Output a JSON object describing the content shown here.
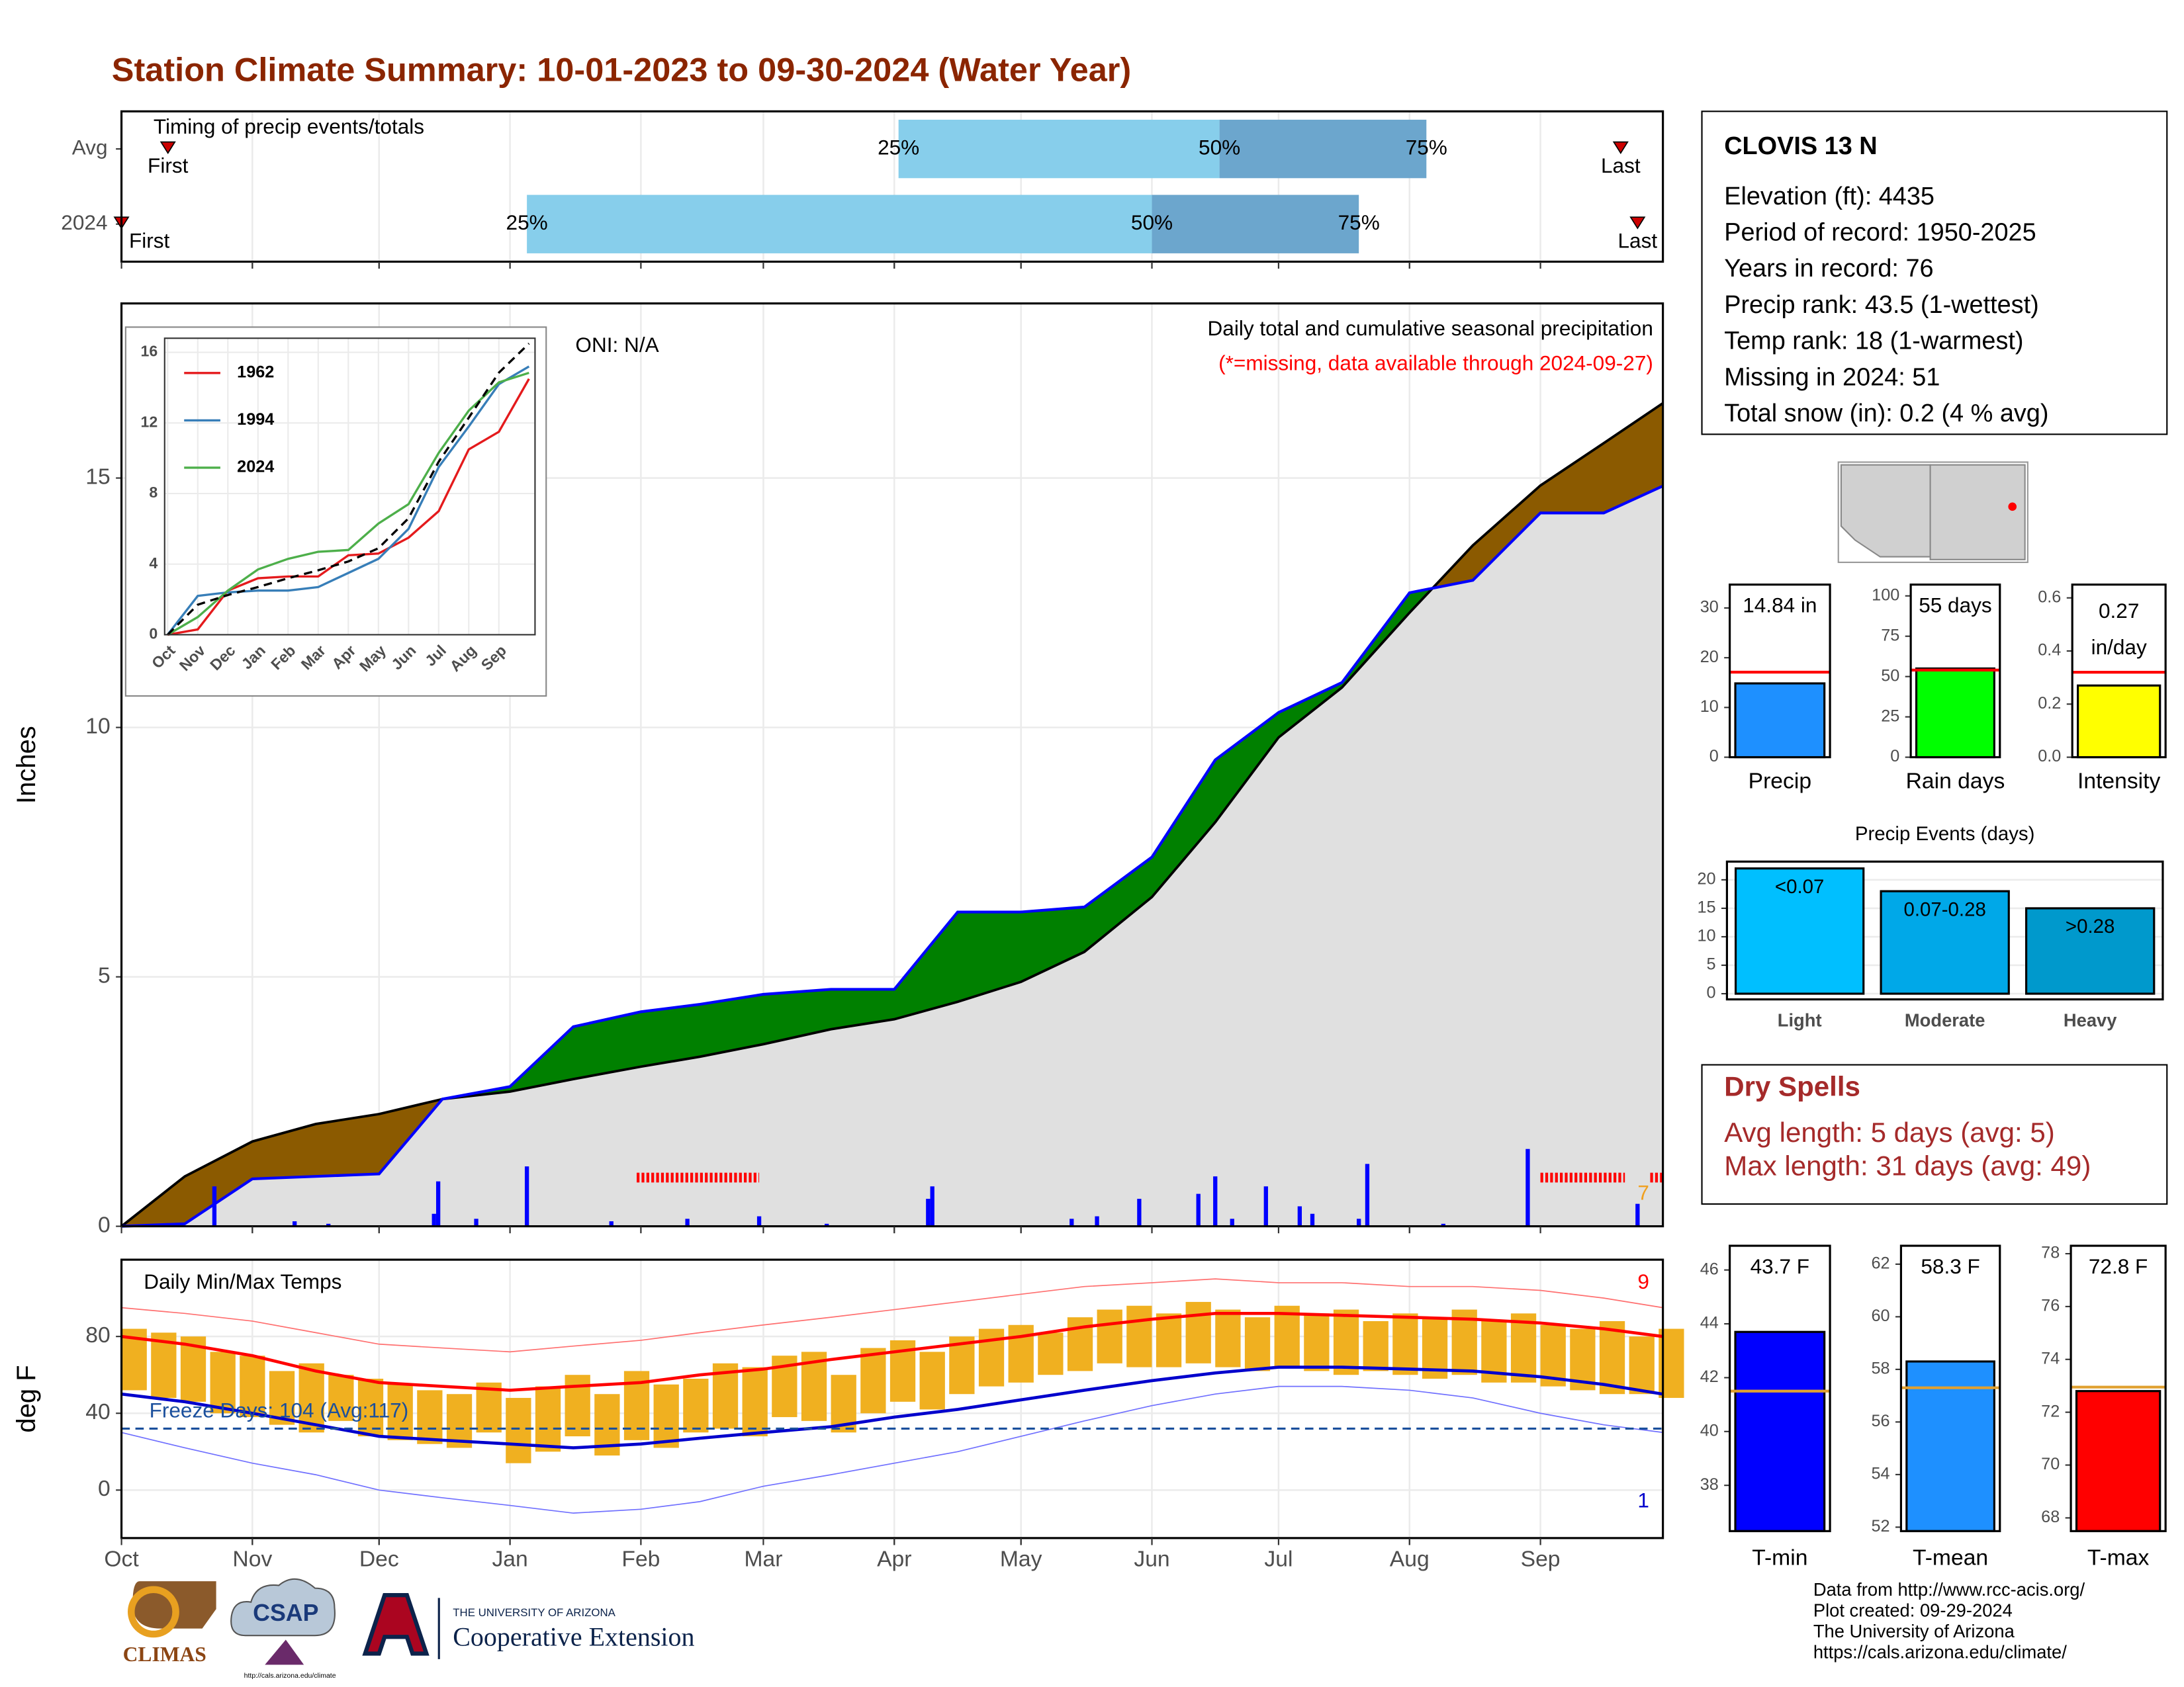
{
  "title": "Station Climate Summary: 10-01-2023 to 09-30-2024 (Water Year)",
  "chart_data": [
    {
      "type": "timing",
      "title": "Timing of precip events/totals",
      "categories": [
        "Avg",
        "2024"
      ],
      "xlim": [
        0,
        365
      ],
      "series": [
        {
          "name": "First",
          "values": [
            11,
            0
          ]
        },
        {
          "name": "25%",
          "values": [
            184,
            96
          ]
        },
        {
          "name": "50%",
          "values": [
            260,
            244
          ]
        },
        {
          "name": "75%",
          "values": [
            309,
            293
          ]
        },
        {
          "name": "Last",
          "values": [
            355,
            359
          ]
        }
      ],
      "colors": [
        "#87ceeb",
        "#6ca6cd"
      ],
      "marker_color": "#cc0000"
    },
    {
      "type": "area",
      "subtitle": "Daily total and cumulative seasonal precipitation",
      "note": "(*=missing, data available through 2024-09-27)",
      "annotation": "ONI: N/A",
      "ylabel": "Inches",
      "xlim": [
        0,
        365
      ],
      "ylim": [
        0,
        18.5
      ],
      "yticks": [
        0,
        5,
        10,
        15
      ],
      "grid": true,
      "x": [
        0,
        15,
        31,
        46,
        61,
        76,
        92,
        107,
        123,
        137,
        152,
        168,
        183,
        198,
        213,
        228,
        244,
        259,
        274,
        289,
        305,
        320,
        336,
        351,
        365
      ],
      "series": [
        {
          "color": "#000000",
          "values": [
            0,
            1.0,
            1.7,
            2.05,
            2.25,
            2.55,
            2.7,
            2.95,
            3.2,
            3.4,
            3.65,
            3.95,
            4.15,
            4.5,
            4.9,
            5.5,
            6.6,
            8.1,
            9.8,
            10.8,
            12.3,
            13.65,
            14.85,
            15.7,
            16.5
          ]
        },
        {
          "color": "#0000ff",
          "values": [
            0,
            0.05,
            0.95,
            1.0,
            1.05,
            2.55,
            2.8,
            4.0,
            4.3,
            4.45,
            4.65,
            4.75,
            4.75,
            6.3,
            6.3,
            6.4,
            7.4,
            9.35,
            10.3,
            10.9,
            12.7,
            12.95,
            14.3,
            14.3,
            14.84
          ]
        }
      ],
      "above_color": "#008000",
      "below_color": "#8b5a00",
      "base_color": "#e0e0e0",
      "daily": {
        "color": "#0000ff",
        "x": [
          22,
          41,
          49,
          74,
          75,
          84,
          96,
          116,
          134,
          151,
          167,
          191,
          192,
          225,
          231,
          241,
          255,
          259,
          263,
          271,
          279,
          282,
          293,
          295,
          313,
          333,
          359
        ],
        "values": [
          0.8,
          0.1,
          0.05,
          0.25,
          0.9,
          0.15,
          1.2,
          0.1,
          0.15,
          0.2,
          0.05,
          0.55,
          0.8,
          0.15,
          0.2,
          0.55,
          0.65,
          1.0,
          0.15,
          0.8,
          0.4,
          0.25,
          0.15,
          1.25,
          0.05,
          1.55,
          0.45
        ]
      },
      "missing": [
        [
          122,
          151
        ],
        [
          336,
          356
        ],
        [
          362,
          365
        ]
      ],
      "missing_color": "#ff0000",
      "missing_count": 7,
      "missing_count_color": "#f0a020"
    },
    {
      "type": "line",
      "xlim": [
        -0.1,
        12.2
      ],
      "ylim": [
        0,
        16.8
      ],
      "yticks": [
        0,
        4,
        8,
        12,
        16
      ],
      "xticks": [
        {
          "value": 0,
          "label": "Oct"
        },
        {
          "value": 1,
          "label": "Nov"
        },
        {
          "value": 2,
          "label": "Dec"
        },
        {
          "value": 3,
          "label": "Jan"
        },
        {
          "value": 4,
          "label": "Feb"
        },
        {
          "value": 5,
          "label": "Mar"
        },
        {
          "value": 6,
          "label": "Apr"
        },
        {
          "value": 7,
          "label": "May"
        },
        {
          "value": 8,
          "label": "Jun"
        },
        {
          "value": 9,
          "label": "Jul"
        },
        {
          "value": 10,
          "label": "Aug"
        },
        {
          "value": 11,
          "label": "Sep"
        }
      ],
      "x": [
        0,
        1,
        2,
        3,
        4,
        5,
        6,
        7,
        8,
        9,
        10,
        11,
        12
      ],
      "series": [
        {
          "name": "1962",
          "color": "#e41a1c",
          "values": [
            0,
            0.3,
            2.5,
            3.2,
            3.3,
            3.3,
            4.5,
            4.6,
            5.5,
            7.0,
            10.5,
            11.5,
            14.5
          ]
        },
        {
          "name": "1994",
          "color": "#377eb8",
          "values": [
            0,
            2.2,
            2.4,
            2.5,
            2.5,
            2.7,
            3.5,
            4.3,
            6.0,
            9.5,
            11.8,
            14.2,
            15.2
          ]
        },
        {
          "name": "2024",
          "color": "#4daf4a",
          "values": [
            0,
            1.0,
            2.5,
            3.7,
            4.3,
            4.7,
            4.8,
            6.3,
            7.4,
            10.3,
            12.7,
            14.3,
            14.84
          ]
        },
        {
          "color": "#000000",
          "dash": true,
          "values": [
            0,
            1.7,
            2.25,
            2.7,
            3.2,
            3.65,
            4.15,
            4.9,
            6.6,
            9.8,
            12.3,
            14.85,
            16.5
          ]
        }
      ]
    },
    {
      "type": "range",
      "title": "Daily Min/Max Temps",
      "ylabel": "deg F",
      "xlim": [
        0,
        365
      ],
      "ylim": [
        -25,
        120
      ],
      "yticks": [
        0,
        40,
        80
      ],
      "xticks": [
        {
          "value": 0,
          "label": "Oct"
        },
        {
          "value": 31,
          "label": "Nov"
        },
        {
          "value": 61,
          "label": "Dec"
        },
        {
          "value": 92,
          "label": "Jan"
        },
        {
          "value": 123,
          "label": "Feb"
        },
        {
          "value": 152,
          "label": "Mar"
        },
        {
          "value": 183,
          "label": "Apr"
        },
        {
          "value": 213,
          "label": "May"
        },
        {
          "value": 244,
          "label": "Jun"
        },
        {
          "value": 274,
          "label": "Jul"
        },
        {
          "value": 305,
          "label": "Aug"
        },
        {
          "value": 336,
          "label": "Sep"
        }
      ],
      "daily": {
        "color": "#f0b020",
        "x": [
          0,
          7,
          14,
          21,
          28,
          35,
          42,
          49,
          56,
          63,
          70,
          77,
          84,
          91,
          98,
          105,
          112,
          119,
          126,
          133,
          140,
          147,
          154,
          161,
          168,
          175,
          182,
          189,
          196,
          203,
          210,
          217,
          224,
          231,
          238,
          245,
          252,
          259,
          266,
          273,
          280,
          287,
          294,
          301,
          308,
          315,
          322,
          329,
          336,
          343,
          350,
          357,
          364
        ],
        "high": [
          84,
          82,
          80,
          72,
          70,
          62,
          66,
          60,
          58,
          55,
          52,
          50,
          56,
          48,
          54,
          60,
          50,
          62,
          55,
          58,
          66,
          64,
          70,
          72,
          60,
          74,
          78,
          72,
          80,
          84,
          86,
          82,
          90,
          94,
          96,
          92,
          98,
          94,
          90,
          96,
          92,
          94,
          88,
          92,
          90,
          94,
          88,
          92,
          86,
          84,
          88,
          80,
          84
        ],
        "low": [
          52,
          48,
          46,
          40,
          38,
          34,
          30,
          36,
          28,
          26,
          24,
          22,
          30,
          14,
          20,
          28,
          18,
          26,
          22,
          30,
          32,
          28,
          38,
          36,
          30,
          40,
          46,
          42,
          50,
          54,
          56,
          60,
          62,
          66,
          64,
          64,
          66,
          64,
          62,
          64,
          62,
          60,
          62,
          60,
          58,
          60,
          56,
          56,
          54,
          52,
          50,
          50,
          48
        ]
      },
      "x": [
        0,
        15,
        31,
        46,
        61,
        76,
        92,
        107,
        123,
        137,
        152,
        168,
        183,
        198,
        213,
        228,
        244,
        259,
        274,
        289,
        305,
        320,
        336,
        351,
        365
      ],
      "series": [
        {
          "color": "#ff0000",
          "values": [
            80,
            76,
            70,
            62,
            56,
            54,
            52,
            54,
            56,
            60,
            63,
            68,
            72,
            76,
            80,
            85,
            89,
            92,
            92,
            91,
            90,
            89,
            87,
            84,
            80
          ]
        },
        {
          "color": "#0000cc",
          "values": [
            50,
            46,
            40,
            34,
            28,
            26,
            24,
            22,
            24,
            27,
            30,
            33,
            38,
            42,
            47,
            52,
            57,
            61,
            64,
            64,
            63,
            62,
            59,
            55,
            50
          ]
        },
        {
          "color": "#ff7070",
          "values": [
            95,
            92,
            88,
            82,
            76,
            74,
            72,
            75,
            78,
            82,
            86,
            90,
            94,
            98,
            102,
            106,
            108,
            110,
            108,
            108,
            106,
            106,
            104,
            100,
            95
          ]
        },
        {
          "color": "#7070ff",
          "values": [
            30,
            22,
            14,
            8,
            0,
            -4,
            -8,
            -12,
            -10,
            -6,
            2,
            8,
            14,
            20,
            28,
            36,
            44,
            50,
            54,
            54,
            52,
            48,
            40,
            34,
            30
          ]
        }
      ],
      "freeze_line": 32,
      "freeze_color": "#1a4f9c",
      "freeze_label": "Freeze Days: 104 (Avg:117)",
      "record_high_count": 9,
      "record_low_count": 1
    },
    {
      "type": "bar",
      "categories": [
        "Precip"
      ],
      "values": [
        14.84
      ],
      "value_labels": [
        "14.84 in"
      ],
      "average": 17.1,
      "ylim": [
        0,
        34.7
      ],
      "yticks": [
        0,
        10,
        20,
        30
      ],
      "color": "#1e90ff",
      "average_color": "#ff0000"
    },
    {
      "type": "bar",
      "categories": [
        "Rain days"
      ],
      "values": [
        55
      ],
      "value_labels": [
        "55 days"
      ],
      "average": 54,
      "ylim": [
        0,
        107
      ],
      "yticks": [
        0,
        25,
        50,
        75,
        100
      ],
      "color": "#00ff00",
      "average_color": "#ff0000"
    },
    {
      "type": "bar",
      "categories": [
        "Intensity"
      ],
      "values": [
        0.27
      ],
      "value_labels": [
        "0.27"
      ],
      "unit": "in/day",
      "average": 0.32,
      "ylim": [
        0,
        0.65
      ],
      "yticks": [
        {
          "value": 0,
          "label": "0.0"
        },
        0.2,
        0.4,
        0.6
      ],
      "color": "#ffff00",
      "average_color": "#ff0000"
    },
    {
      "type": "bar",
      "title": "Precip Events (days)",
      "categories": [
        "Light",
        "Moderate",
        "Heavy"
      ],
      "values": [
        22,
        18,
        15
      ],
      "range_labels": [
        "<0.07",
        "0.07-0.28",
        ">0.28"
      ],
      "ylim": [
        -1,
        23.2
      ],
      "yticks": [
        0,
        5,
        10,
        15,
        20
      ],
      "colors": [
        "#00bfff",
        "#00a8e8",
        "#0099cc"
      ],
      "grid": true
    },
    {
      "type": "bar",
      "categories": [
        "T-min"
      ],
      "values": [
        43.7
      ],
      "value_labels": [
        "43.7 F"
      ],
      "average": 41.5,
      "ylim": [
        36.3,
        46.9
      ],
      "yticks": [
        38,
        40,
        42,
        44,
        46
      ],
      "color": "#0000ff",
      "average_color": "#e0a030"
    },
    {
      "type": "bar",
      "categories": [
        "T-mean"
      ],
      "values": [
        58.3
      ],
      "value_labels": [
        "58.3 F"
      ],
      "average": 57.3,
      "ylim": [
        51.85,
        62.7
      ],
      "yticks": [
        52,
        54,
        56,
        58,
        60,
        62
      ],
      "color": "#1e90ff",
      "average_color": "#e0a030"
    },
    {
      "type": "bar",
      "categories": [
        "T-max"
      ],
      "values": [
        72.8
      ],
      "value_labels": [
        "72.8 F"
      ],
      "average": 72.95,
      "ylim": [
        67.5,
        78.3
      ],
      "yticks": [
        68,
        70,
        72,
        74,
        76,
        78
      ],
      "color": "#ff0000",
      "average_color": "#e0a030"
    }
  ],
  "station": {
    "name": "CLOVIS 13 N",
    "lines": [
      "Elevation (ft): 4435",
      "Period of record: 1950-2025",
      "Years in record: 76",
      "Precip rank: 43.5 (1-wettest)",
      "Temp rank: 18 (1-warmest)",
      "Missing in 2024: 51",
      "Total snow (in): 0.2 (4 % avg)"
    ]
  },
  "dry_spells": {
    "title": "Dry Spells",
    "lines": [
      "Avg length: 5 days (avg: 5)",
      "Max length: 31 days (avg: 49)"
    ]
  },
  "footer": [
    "Data from http://www.rcc-acis.org/",
    "Plot created: 09-29-2024",
    "The University of Arizona",
    "https://cals.arizona.edu/climate/"
  ],
  "logos": {
    "climas": "CLIMAS",
    "csap": "CSAP",
    "csap_url": "http://cals.arizona.edu/climate",
    "university": "THE UNIVERSITY OF ARIZONA",
    "extension": "Cooperative Extension"
  }
}
